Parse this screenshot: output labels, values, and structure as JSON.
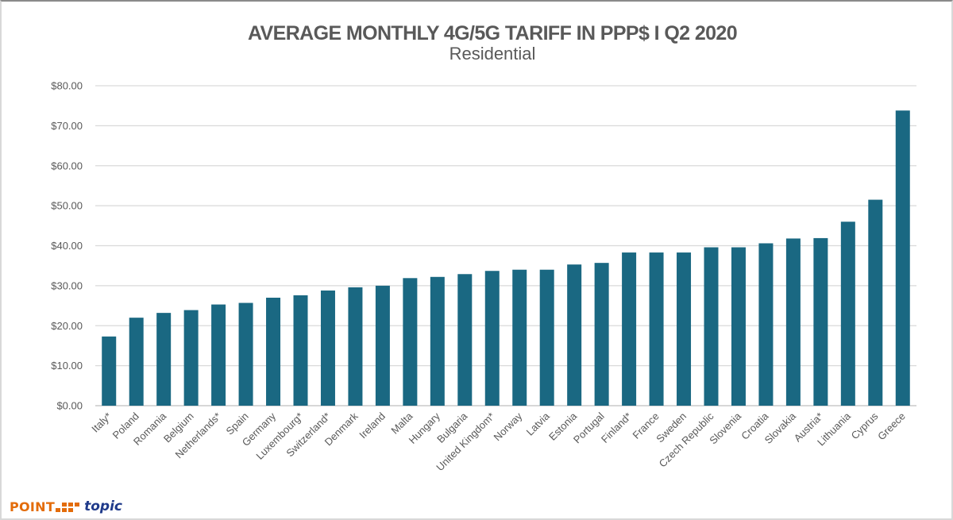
{
  "chart_data": {
    "type": "bar",
    "title": "AVERAGE MONTHLY 4G/5G TARIFF IN PPP$ I Q2 2020",
    "subtitle": "Residential",
    "xlabel": "",
    "ylabel": "",
    "ylim": [
      0,
      80
    ],
    "yticks": [
      0,
      10,
      20,
      30,
      40,
      50,
      60,
      70,
      80
    ],
    "ytick_labels": [
      "$0.00",
      "$10.00",
      "$20.00",
      "$30.00",
      "$40.00",
      "$50.00",
      "$60.00",
      "$70.00",
      "$80.00"
    ],
    "grid": true,
    "legend": "none",
    "bar_color": "#1a6882",
    "categories": [
      "Italy*",
      "Poland",
      "Romania",
      "Belgium",
      "Netherlands*",
      "Spain",
      "Germany",
      "Luxembourg*",
      "Switzerland*",
      "Denmark",
      "Ireland",
      "Malta",
      "Hungary",
      "Bulgaria",
      "United Kingdom*",
      "Norway",
      "Latvia",
      "Estonia",
      "Portugal",
      "Finland*",
      "France",
      "Sweden",
      "Czech Republic",
      "Slovenia",
      "Croatia",
      "Slovakia",
      "Austria*",
      "Lithuania",
      "Cyprus",
      "Greece"
    ],
    "values": [
      17.3,
      22.0,
      23.2,
      23.9,
      25.3,
      25.7,
      27.0,
      27.6,
      28.8,
      29.6,
      30.0,
      31.9,
      32.2,
      32.9,
      33.7,
      34.0,
      34.0,
      35.3,
      35.7,
      38.3,
      38.3,
      38.3,
      39.6,
      39.6,
      40.6,
      41.8,
      41.9,
      46.0,
      51.5,
      73.8
    ]
  },
  "logo": {
    "brand_left": "POINT",
    "brand_right": "topic",
    "brand_left_color": "#e36c0a",
    "brand_right_color": "#1f3a8a"
  }
}
